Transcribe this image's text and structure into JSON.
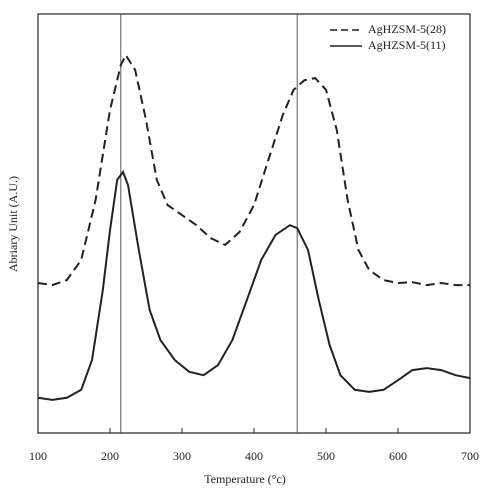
{
  "chart_data": {
    "type": "line",
    "xlabel": "Temperature (°c)",
    "ylabel": "Abriary Unit (A.U.)",
    "xlim": [
      100,
      700
    ],
    "xticks": [
      100,
      200,
      300,
      400,
      500,
      600,
      700
    ],
    "ylim": [
      0,
      100
    ],
    "vlines": [
      215,
      460
    ],
    "legend": "upper right",
    "series": [
      {
        "name": "AgHZSM-5(28)",
        "color": "#222222",
        "dash": true,
        "x": [
          100,
          120,
          140,
          160,
          180,
          200,
          215,
          222,
          235,
          250,
          265,
          280,
          300,
          320,
          340,
          360,
          380,
          400,
          420,
          440,
          455,
          470,
          485,
          500,
          515,
          530,
          545,
          560,
          580,
          600,
          620,
          640,
          660,
          680,
          700
        ],
        "values": [
          35.8,
          35.3,
          36.5,
          41.3,
          55.6,
          77.1,
          87.8,
          90.2,
          86.6,
          74.7,
          60.4,
          54.4,
          52.0,
          49.6,
          46.5,
          44.9,
          48.0,
          54.4,
          65.2,
          75.9,
          81.9,
          84.2,
          84.7,
          81.9,
          72.3,
          55.6,
          43.7,
          38.9,
          36.5,
          35.8,
          36.0,
          35.3,
          35.8,
          35.3,
          35.3
        ]
      },
      {
        "name": "AgHZSM-5(11)",
        "color": "#222222",
        "dash": false,
        "x": [
          100,
          120,
          140,
          160,
          175,
          190,
          200,
          210,
          218,
          225,
          240,
          255,
          270,
          290,
          310,
          330,
          350,
          370,
          390,
          410,
          430,
          450,
          460,
          475,
          490,
          505,
          520,
          540,
          560,
          580,
          600,
          620,
          640,
          660,
          680,
          700
        ],
        "values": [
          8.4,
          7.9,
          8.4,
          10.3,
          17.4,
          34.1,
          48.4,
          60.4,
          62.3,
          59.2,
          43.7,
          29.4,
          22.2,
          17.4,
          14.6,
          13.8,
          16.2,
          22.2,
          31.7,
          41.3,
          47.3,
          49.6,
          48.9,
          43.7,
          31.7,
          21.0,
          13.8,
          10.3,
          9.8,
          10.3,
          12.6,
          15.0,
          15.5,
          15.0,
          13.8,
          13.1
        ]
      }
    ]
  }
}
